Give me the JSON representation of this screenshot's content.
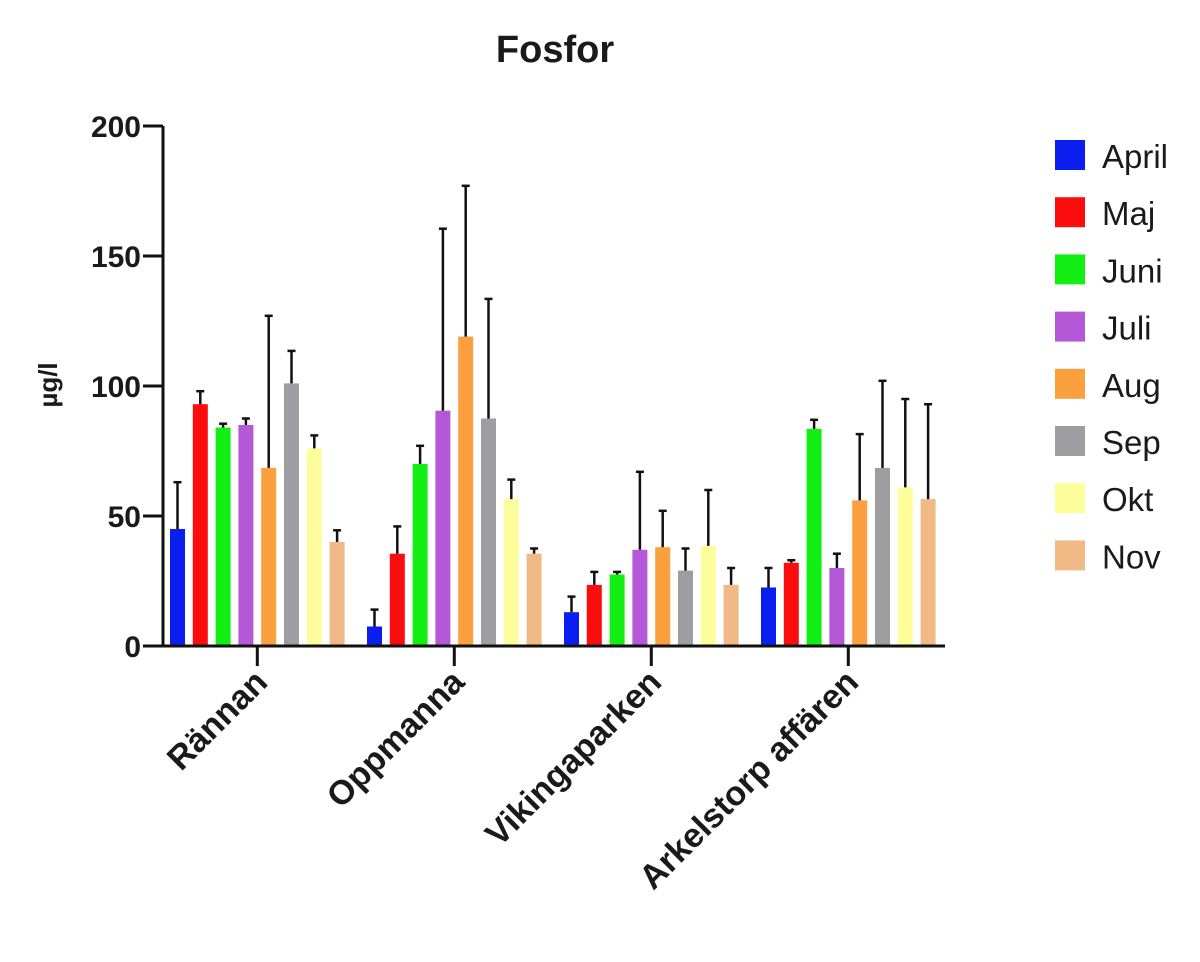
{
  "chart_data": {
    "type": "bar",
    "title": "Fosfor",
    "xlabel": "",
    "ylabel": "µg/l",
    "ylim": [
      0,
      200
    ],
    "yticks": [
      "0",
      "50",
      "100",
      "150",
      "200"
    ],
    "grid": false,
    "legend_position": "right",
    "categories": [
      "Rännan",
      "Oppmanna",
      "Vikingaparken",
      "Arkelstorp affären"
    ],
    "series": [
      {
        "name": "April",
        "color": "#0a1ef0",
        "values": [
          45,
          7.5,
          13,
          22.5
        ],
        "errors": [
          18,
          6.5,
          6,
          7.5
        ]
      },
      {
        "name": "Maj",
        "color": "#fb0d0d",
        "values": [
          93,
          35.5,
          23.5,
          32
        ],
        "errors": [
          5,
          10.5,
          5,
          1
        ]
      },
      {
        "name": "Juni",
        "color": "#13ef13",
        "values": [
          84,
          70,
          27.5,
          83.5
        ],
        "errors": [
          1.5,
          7,
          1,
          3.5
        ]
      },
      {
        "name": "Juli",
        "color": "#b558d8",
        "values": [
          85,
          90.5,
          37,
          30
        ],
        "errors": [
          2.5,
          70,
          30,
          5.5
        ]
      },
      {
        "name": "Aug",
        "color": "#fba03f",
        "values": [
          68.5,
          119,
          38,
          56
        ],
        "errors": [
          58.5,
          58,
          14,
          25.5
        ]
      },
      {
        "name": "Sep",
        "color": "#9d9da2",
        "values": [
          101,
          87.5,
          29,
          68.5
        ],
        "errors": [
          12.5,
          46,
          8.5,
          33.5
        ]
      },
      {
        "name": "Okt",
        "color": "#fdfd9c",
        "values": [
          76,
          56.5,
          38.5,
          61
        ],
        "errors": [
          5,
          7.5,
          21.5,
          34
        ]
      },
      {
        "name": "Nov",
        "color": "#f1b986",
        "values": [
          40,
          35.5,
          23.5,
          56.5
        ],
        "errors": [
          4.5,
          2,
          6.5,
          36.5
        ]
      }
    ]
  }
}
